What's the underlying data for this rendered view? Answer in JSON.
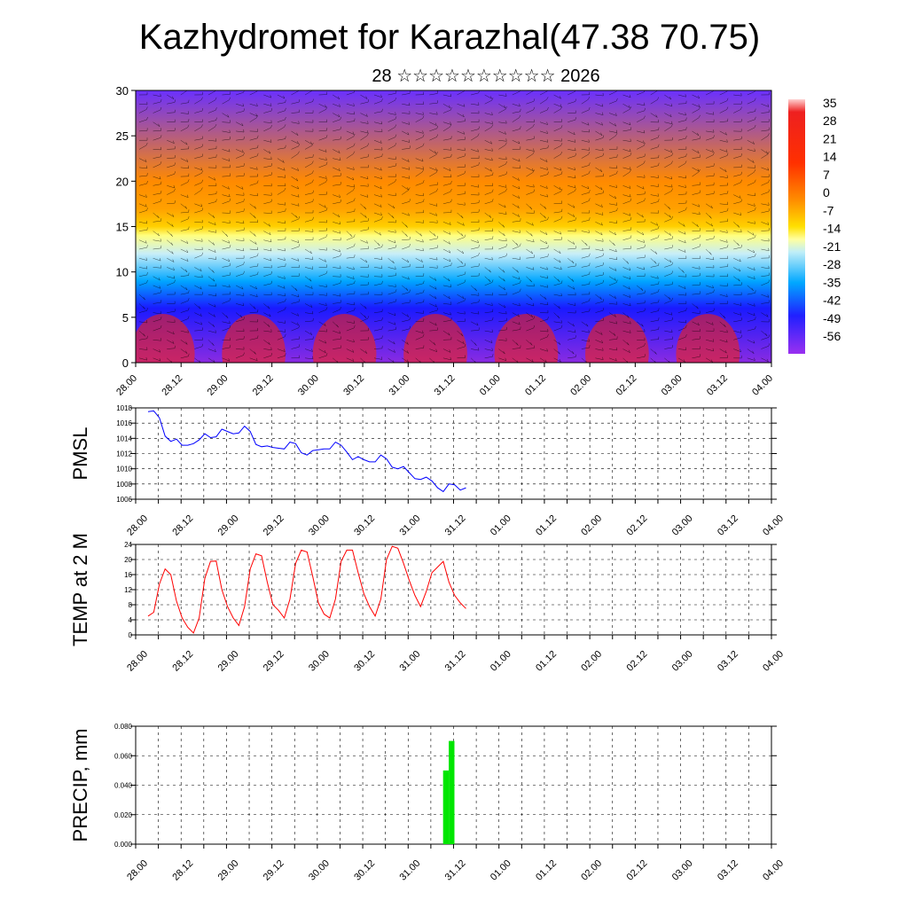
{
  "title": "Kazhydromet for Karazhal(47.38 70.75)",
  "subtitle": "28 ☆☆☆☆☆☆☆☆☆☆ 2026",
  "x_tick_labels": [
    "28.00",
    "28.12",
    "29.00",
    "29.12",
    "30.00",
    "30.12",
    "31.00",
    "31.12",
    "01.00",
    "01.12",
    "02.00",
    "02.12",
    "03.00",
    "03.12",
    "04.00"
  ],
  "chart_data": [
    {
      "type": "heatmap",
      "title": "",
      "ylabel": "",
      "ylim": [
        0,
        30
      ],
      "yticks": [
        0,
        5,
        10,
        15,
        20,
        25,
        30
      ],
      "colorbar_labels": [
        "35",
        "28",
        "21",
        "14",
        "7",
        "0",
        "-7",
        "-14",
        "-21",
        "-28",
        "-35",
        "-42",
        "-49",
        "-56"
      ],
      "color_stops": [
        {
          "level": 0,
          "color": "#8a2be2"
        },
        {
          "level": 6,
          "color": "#1a1aff"
        },
        {
          "level": 9,
          "color": "#00a6ff"
        },
        {
          "level": 12,
          "color": "#c8eef8"
        },
        {
          "level": 14,
          "color": "#ffff80"
        },
        {
          "level": 15,
          "color": "#ffd000"
        },
        {
          "level": 17,
          "color": "#ffa000"
        },
        {
          "level": 20,
          "color": "#ff8a00"
        },
        {
          "level": 30,
          "color": "#6a30ff"
        }
      ]
    },
    {
      "type": "line",
      "ylabel": "PMSL",
      "ylim": [
        1006,
        1018
      ],
      "yticks": [
        "1006",
        "1008",
        "1010",
        "1012",
        "1014",
        "1016",
        "1018"
      ],
      "line_color": "#0000ff",
      "x_step_hours": 3,
      "values": [
        1017.5,
        1017.6,
        1016.7,
        1014.3,
        1013.6,
        1013.9,
        1013.1,
        1013.1,
        1013.3,
        1013.8,
        1014.6,
        1014.1,
        1014.2,
        1015.2,
        1014.9,
        1014.6,
        1014.7,
        1015.6,
        1014.9,
        1013.2,
        1012.9,
        1013.0,
        1012.8,
        1012.7,
        1012.6,
        1013.5,
        1013.3,
        1012.1,
        1011.8,
        1012.4,
        1012.5,
        1012.6,
        1012.6,
        1013.5,
        1013.1,
        1012.2,
        1011.2,
        1011.6,
        1011.2,
        1010.9,
        1010.9,
        1011.8,
        1011.3,
        1010.2,
        1010.0,
        1010.3,
        1009.5,
        1008.7,
        1008.6,
        1008.9,
        1008.4,
        1007.5,
        1007.0,
        1008.0,
        1007.9,
        1007.2,
        1007.5
      ]
    },
    {
      "type": "line",
      "ylabel": "TEMP at 2 M",
      "ylim": [
        0,
        24
      ],
      "yticks": [
        "0",
        "4",
        "8",
        "12",
        "16",
        "20",
        "24"
      ],
      "line_color": "#ff0000",
      "x_step_hours": 3,
      "values": [
        5.0,
        6.0,
        13.5,
        17.5,
        16.0,
        9.0,
        4.5,
        2.0,
        0.5,
        4.5,
        15.0,
        19.5,
        19.6,
        12.0,
        7.5,
        4.5,
        2.5,
        7.5,
        17.5,
        21.5,
        21.0,
        14.0,
        8.0,
        6.5,
        4.5,
        9.5,
        19.0,
        22.5,
        22.0,
        15.5,
        8.5,
        5.5,
        4.5,
        9.5,
        19.5,
        22.5,
        22.5,
        16.5,
        11.0,
        7.5,
        5.0,
        9.5,
        20.0,
        23.5,
        23.0,
        19.0,
        14.5,
        10.5,
        7.5,
        11.5,
        16.5,
        18.0,
        19.5,
        14.0,
        10.5,
        8.5,
        7.0
      ]
    },
    {
      "type": "bar",
      "ylabel": "PRECIP, mm",
      "ylim": [
        0,
        0.08
      ],
      "yticks": [
        "0.000",
        "0.020",
        "0.040",
        "0.060",
        "0.080"
      ],
      "bar_color": "#00e600",
      "x_step_hours": 3,
      "bars": [
        {
          "index": 52,
          "value": 0.05
        },
        {
          "index": 53,
          "value": 0.07
        }
      ]
    }
  ]
}
